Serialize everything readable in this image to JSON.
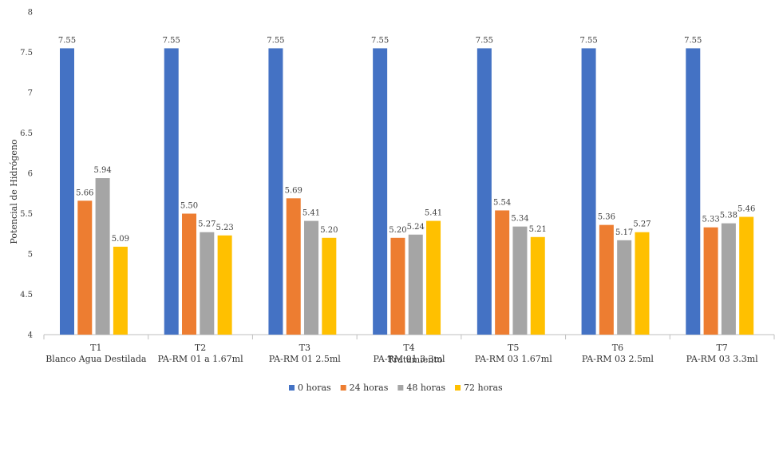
{
  "chart_data": {
    "type": "bar",
    "title": "",
    "xlabel": "Tratamiento",
    "ylabel": "Potencial de Hidrógeno",
    "ylim": [
      4,
      8
    ],
    "yticks": [
      4,
      4.5,
      5,
      5.5,
      6,
      6.5,
      7,
      7.5,
      8
    ],
    "ytick_labels": [
      "4",
      "4.5",
      "5",
      "5.5",
      "6",
      "6.5",
      "7",
      "7.5",
      "8"
    ],
    "categories": [
      [
        "T1",
        "Blanco Agua Destilada"
      ],
      [
        "T2",
        "PA-RM 01 a 1.67ml"
      ],
      [
        "T3",
        "PA-RM 01 2.5ml"
      ],
      [
        "T4",
        "PA-RM 01 3.3ml"
      ],
      [
        "T5",
        "PA-RM 03 1.67ml"
      ],
      [
        "T6",
        "PA-RM 03 2.5ml"
      ],
      [
        "T7",
        "PA-RM 03 3.3ml"
      ]
    ],
    "series": [
      {
        "name": "0 horas",
        "color": "#4472C4",
        "values": [
          7.55,
          7.55,
          7.55,
          7.55,
          7.55,
          7.55,
          7.55
        ],
        "labels": [
          "7.55",
          "7.55",
          "7.55",
          "7.55",
          "7.55",
          "7.55",
          "7.55"
        ]
      },
      {
        "name": "24 horas",
        "color": "#ED7D31",
        "values": [
          5.66,
          5.5,
          5.69,
          5.2,
          5.54,
          5.36,
          5.33
        ],
        "labels": [
          "5.66",
          "5.50",
          "5.69",
          "5.20",
          "5.54",
          "5.36",
          "5.33"
        ]
      },
      {
        "name": "48 horas",
        "color": "#A5A5A5",
        "values": [
          5.94,
          5.27,
          5.41,
          5.24,
          5.34,
          5.17,
          5.38
        ],
        "labels": [
          "5.94",
          "5.27",
          "5.41",
          "5.24",
          "5.34",
          "5.17",
          "5.38"
        ]
      },
      {
        "name": "72 horas",
        "color": "#FFC000",
        "values": [
          5.09,
          5.23,
          5.2,
          5.41,
          5.21,
          5.27,
          5.46
        ],
        "labels": [
          "5.09",
          "5.23",
          "5.20",
          "5.41",
          "5.21",
          "5.27",
          "5.46"
        ]
      }
    ],
    "legend_position": "bottom",
    "grid": false
  }
}
